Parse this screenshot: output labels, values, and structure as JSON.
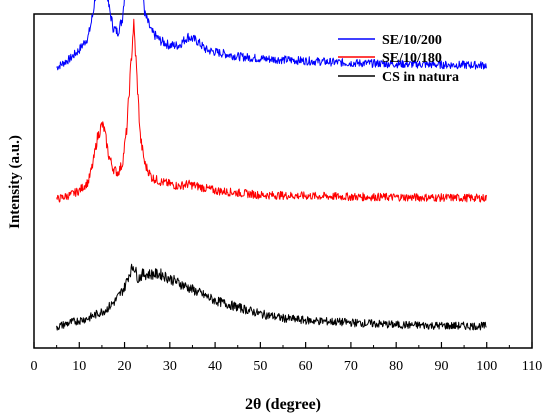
{
  "chart_data": {
    "type": "line",
    "title": "",
    "xlabel": "2θ (degree)",
    "ylabel": "Intensity (a.u.)",
    "xlim": [
      0,
      110
    ],
    "x_ticks": [
      "0",
      "10",
      "20",
      "30",
      "40",
      "50",
      "60",
      "70",
      "80",
      "90",
      "100",
      "110"
    ],
    "grid": false,
    "legend_position": "top-right",
    "series": [
      {
        "name": "SE/10/200",
        "color": "#0000ff",
        "offset": 0.59,
        "x": [
          5,
          8,
          10,
          12,
          13,
          14,
          15,
          15.5,
          16.5,
          17.5,
          18.5,
          19.5,
          20.5,
          21.5,
          22,
          22.5,
          23.5,
          24.5,
          26,
          28,
          30,
          32,
          34,
          36,
          38,
          40,
          45,
          50,
          60,
          70,
          80,
          90,
          100
        ],
        "y": [
          0.0,
          0.02,
          0.04,
          0.07,
          0.12,
          0.2,
          0.26,
          0.24,
          0.14,
          0.09,
          0.08,
          0.11,
          0.22,
          0.5,
          0.7,
          0.55,
          0.24,
          0.12,
          0.08,
          0.06,
          0.05,
          0.05,
          0.07,
          0.06,
          0.04,
          0.035,
          0.025,
          0.02,
          0.015,
          0.01,
          0.008,
          0.006,
          0.005
        ]
      },
      {
        "name": "SE/10/180",
        "color": "#ff0000",
        "offset": 0.29,
        "x": [
          5,
          8,
          10,
          12,
          13,
          14,
          15,
          15.5,
          16.5,
          17.5,
          18.5,
          19.5,
          20.5,
          21.5,
          22,
          22.5,
          23.5,
          24.5,
          26,
          28,
          30,
          32,
          34,
          36,
          38,
          40,
          45,
          50,
          60,
          70,
          80,
          90,
          100
        ],
        "y": [
          0.0,
          0.01,
          0.02,
          0.04,
          0.08,
          0.14,
          0.17,
          0.16,
          0.1,
          0.07,
          0.06,
          0.08,
          0.16,
          0.32,
          0.4,
          0.32,
          0.14,
          0.08,
          0.05,
          0.04,
          0.035,
          0.03,
          0.035,
          0.03,
          0.025,
          0.02,
          0.015,
          0.01,
          0.008,
          0.006,
          0.005,
          0.004,
          0.003
        ]
      },
      {
        "name": "CS in natura",
        "color": "#000000",
        "offset": 0.0,
        "x": [
          5,
          8,
          10,
          12,
          14,
          16,
          18,
          20,
          21,
          22,
          23,
          24,
          26,
          28,
          30,
          32,
          34,
          36,
          38,
          40,
          45,
          50,
          55,
          60,
          70,
          80,
          90,
          100
        ],
        "y": [
          0.0,
          0.01,
          0.015,
          0.02,
          0.03,
          0.04,
          0.06,
          0.09,
          0.12,
          0.14,
          0.11,
          0.12,
          0.12,
          0.12,
          0.11,
          0.1,
          0.09,
          0.08,
          0.07,
          0.06,
          0.045,
          0.03,
          0.02,
          0.015,
          0.01,
          0.005,
          0.003,
          0.002
        ]
      }
    ]
  }
}
